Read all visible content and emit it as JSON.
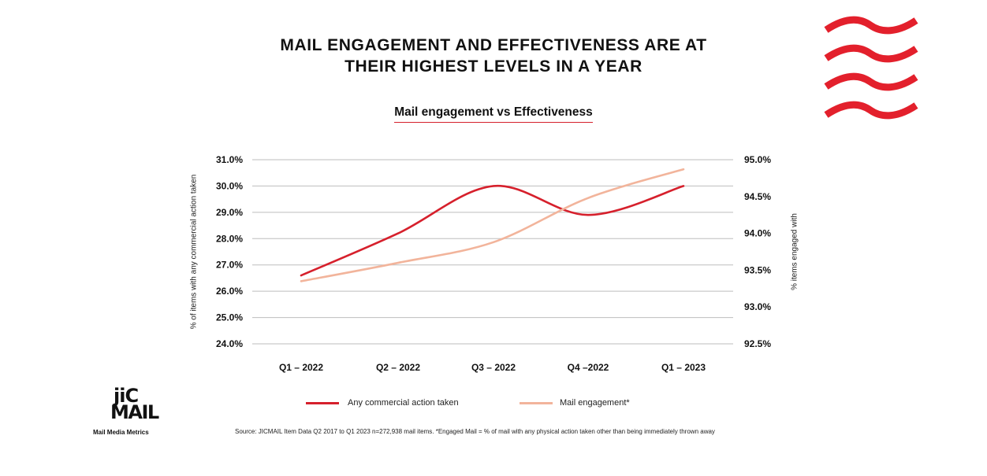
{
  "header": {
    "title_line1": "MAIL ENGAGEMENT AND EFFECTIVENESS ARE AT",
    "title_line2": "THEIR HIGHEST LEVELS IN A YEAR",
    "subtitle": "Mail engagement vs Effectiveness"
  },
  "colors": {
    "commercial": "#d6202c",
    "engagement": "#f2b49b",
    "grid": "#bdbdbd",
    "waves": "#e3202c"
  },
  "chart_data": {
    "type": "line",
    "categories": [
      "Q1 – 2022",
      "Q2 – 2022",
      "Q3 – 2022",
      "Q4 –2022",
      "Q1 – 2023"
    ],
    "series": [
      {
        "name": "Any commercial action taken",
        "axis": "left",
        "values": [
          26.6,
          28.2,
          30.0,
          28.9,
          30.0
        ]
      },
      {
        "name": "Mail engagement*",
        "axis": "right",
        "values": [
          93.35,
          93.6,
          93.88,
          94.48,
          94.87
        ]
      }
    ],
    "y_left": {
      "label": "% of items with any commercial action taken",
      "range": [
        24.0,
        31.0
      ],
      "ticks": [
        "31.0%",
        "30.0%",
        "29.0%",
        "28.0%",
        "27.0%",
        "26.0%",
        "25.0%",
        "24.0%"
      ]
    },
    "y_right": {
      "label": "% items engaged with",
      "range": [
        92.5,
        95.0
      ],
      "ticks": [
        "95.0%",
        "94.5%",
        "94.0%",
        "93.5%",
        "93.0%",
        "92.5%"
      ]
    },
    "grid": true,
    "legend_position": "bottom"
  },
  "footer": {
    "logo_top": "jiC",
    "logo_bottom": "MAIL",
    "logo_caption": "Mail Media Metrics",
    "source": "Source: JICMAIL Item Data Q2 2017 to Q1 2023 n=272,938 mail items. *Engaged Mail = % of mail with any physical action taken other than being immediately thrown away"
  }
}
